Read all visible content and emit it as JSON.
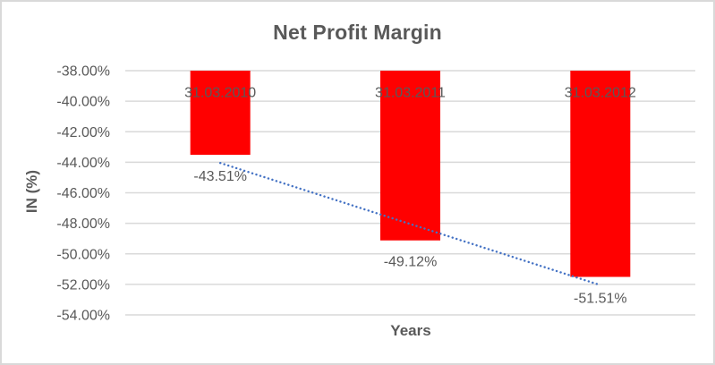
{
  "chart_data": {
    "type": "bar",
    "title": "Net Profit Margin",
    "xlabel": "Years",
    "ylabel": "IN (%)",
    "categories": [
      "31.03.2010",
      "31.03.2011",
      "31.03.2012"
    ],
    "values": [
      -43.51,
      -49.12,
      -51.51
    ],
    "data_labels": [
      "-43.51%",
      "-49.12%",
      "-51.51%"
    ],
    "ylim": [
      -54,
      -38
    ],
    "y_ticks": [
      {
        "value": -38,
        "label": "-38.00%"
      },
      {
        "value": -40,
        "label": "-40.00%"
      },
      {
        "value": -42,
        "label": "-42.00%"
      },
      {
        "value": -44,
        "label": "-44.00%"
      },
      {
        "value": -46,
        "label": "-46.00%"
      },
      {
        "value": -48,
        "label": "-48.00%"
      },
      {
        "value": -50,
        "label": "-50.00%"
      },
      {
        "value": -52,
        "label": "-52.00%"
      },
      {
        "value": -54,
        "label": "-54.00%"
      }
    ],
    "grid": true,
    "legend": false,
    "bars_hang_from": -38,
    "trendline": {
      "type": "linear",
      "style": "dotted"
    },
    "colors": {
      "bar": "#FF0000",
      "trendline": "#4472C4",
      "text": "#595959",
      "gridline": "#D9D9D9",
      "border": "#D9D9D9",
      "background": "#FFFFFF"
    }
  }
}
